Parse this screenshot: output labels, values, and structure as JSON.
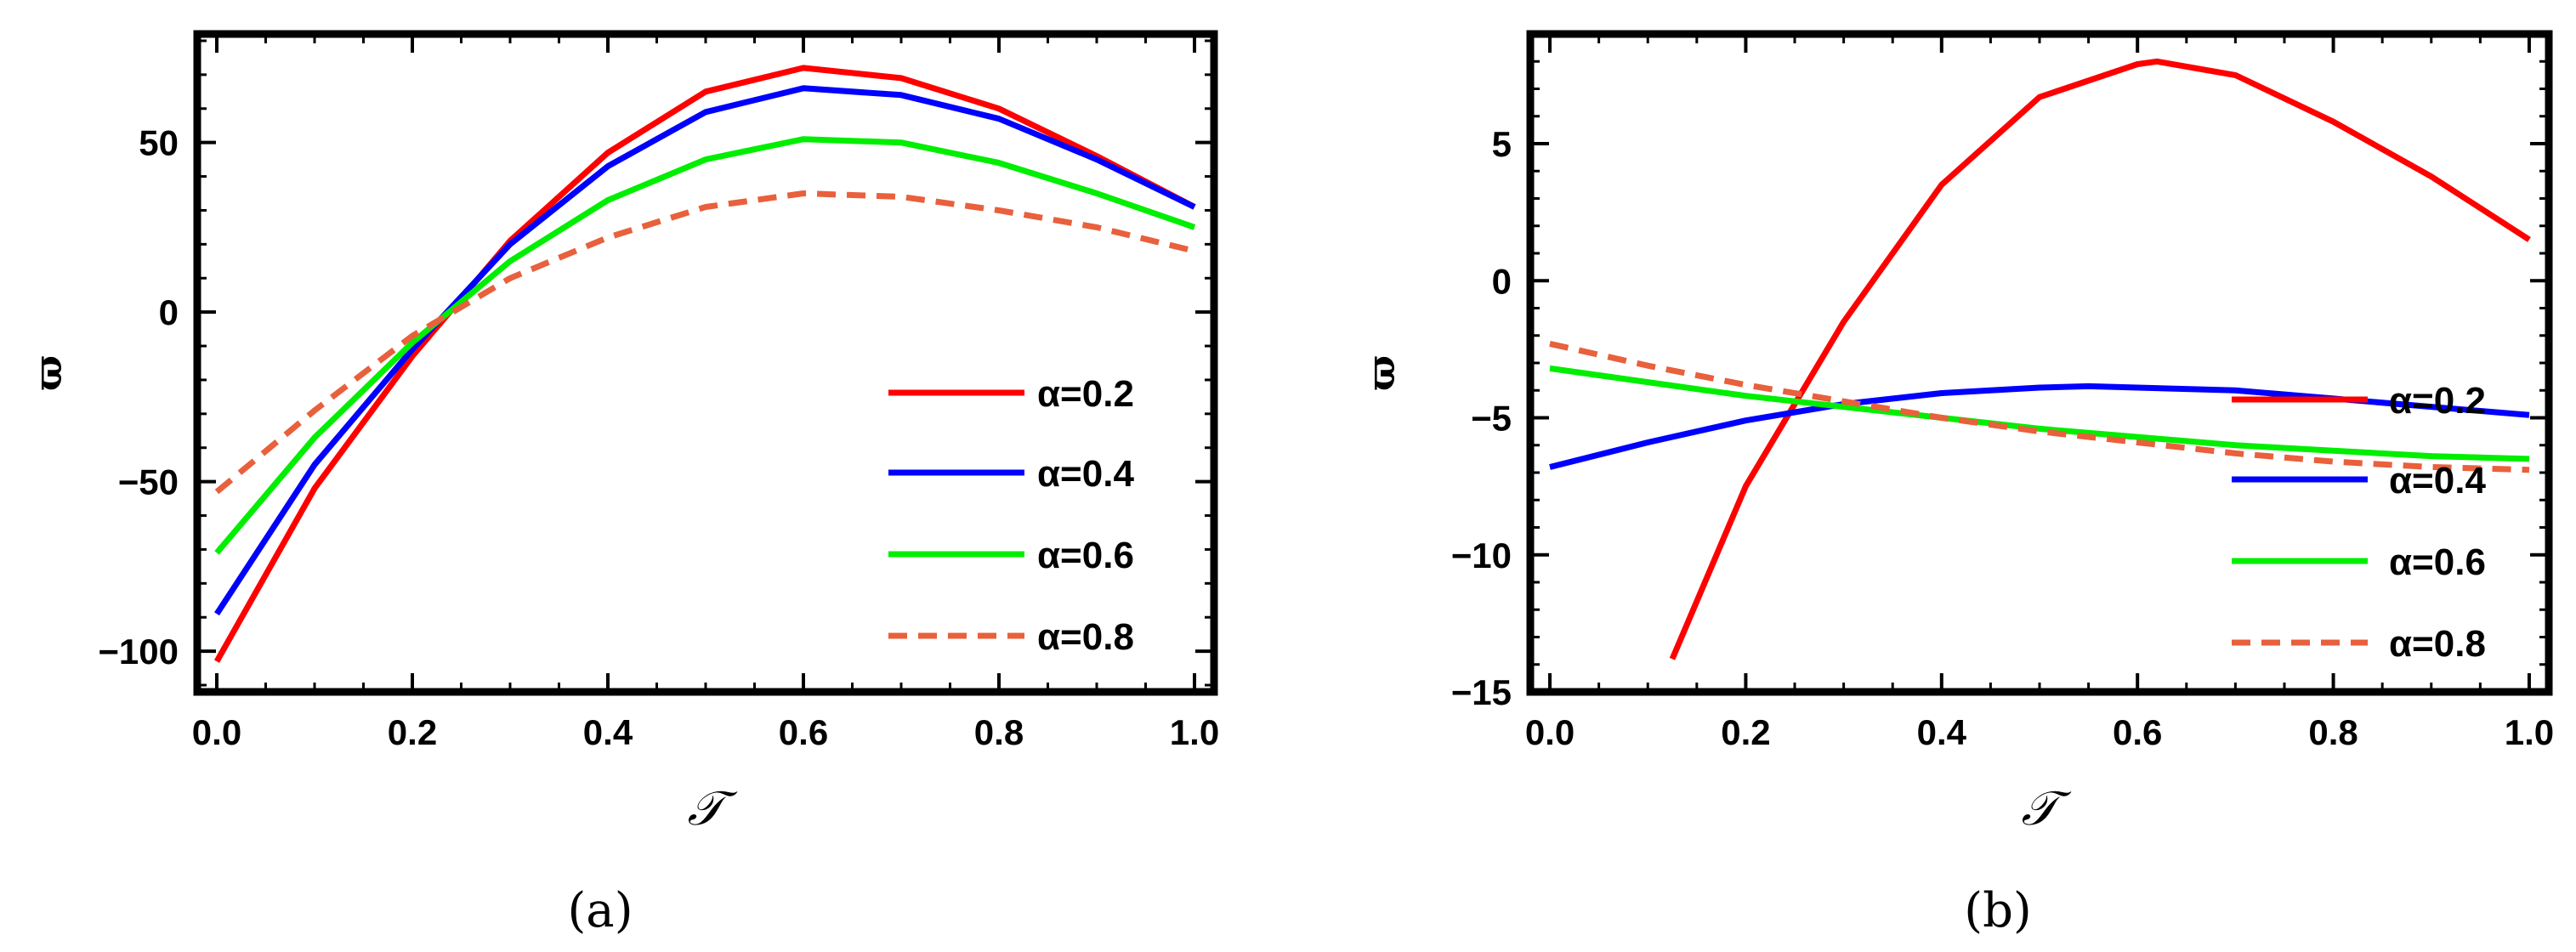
{
  "chart_data": [
    {
      "type": "line",
      "caption": "(a)",
      "xlabel": "𝒯",
      "ylabel": "ϖ",
      "xlim": [
        -0.02,
        1.02
      ],
      "ylim": [
        -112,
        82
      ],
      "xticks": [
        0.0,
        0.2,
        0.4,
        0.6,
        0.8,
        1.0
      ],
      "xtick_labels": [
        "0.0",
        "0.2",
        "0.4",
        "0.6",
        "0.8",
        "1.0"
      ],
      "yticks": [
        50,
        0,
        -50,
        -100
      ],
      "ytick_labels": [
        "50",
        "0",
        "−50",
        "−100"
      ],
      "legend_position": "right",
      "x": [
        0.0,
        0.1,
        0.2,
        0.3,
        0.4,
        0.5,
        0.6,
        0.7,
        0.8,
        0.9,
        1.0
      ],
      "series": [
        {
          "name": "α=0.2",
          "color": "#ff0000",
          "dash": false,
          "values": [
            -103,
            -52,
            -13,
            21,
            47,
            65,
            72,
            69,
            60,
            46,
            31
          ]
        },
        {
          "name": "α=0.4",
          "color": "#0000ff",
          "dash": false,
          "values": [
            -89,
            -45,
            -11,
            20,
            43,
            59,
            66,
            64,
            57,
            45,
            31
          ]
        },
        {
          "name": "α=0.6",
          "color": "#00ee00",
          "dash": false,
          "values": [
            -71,
            -37,
            -9,
            15,
            33,
            45,
            51,
            50,
            44,
            35,
            25
          ]
        },
        {
          "name": "α=0.8",
          "color": "#e8603c",
          "dash": true,
          "values": [
            -53,
            -29,
            -7,
            10,
            22,
            31,
            35,
            34,
            30,
            25,
            18
          ]
        }
      ]
    },
    {
      "type": "line",
      "caption": "(b)",
      "xlabel": "𝒯",
      "ylabel": "ϖ",
      "xlim": [
        -0.02,
        1.02
      ],
      "ylim": [
        -15,
        9
      ],
      "xticks": [
        0.0,
        0.2,
        0.4,
        0.6,
        0.8,
        1.0
      ],
      "xtick_labels": [
        "0.0",
        "0.2",
        "0.4",
        "0.6",
        "0.8",
        "1.0"
      ],
      "yticks": [
        5,
        0,
        -5,
        -10,
        -15
      ],
      "ytick_labels": [
        "5",
        "0",
        "−5",
        "−10",
        "−15"
      ],
      "legend_position": "right",
      "series": [
        {
          "name": "α=0.2",
          "color": "#ff0000",
          "dash": false,
          "x": [
            0.125,
            0.2,
            0.3,
            0.4,
            0.5,
            0.6,
            0.62,
            0.7,
            0.8,
            0.9,
            1.0
          ],
          "values": [
            -13.8,
            -7.5,
            -1.5,
            3.5,
            6.7,
            7.9,
            8.0,
            7.5,
            5.8,
            3.8,
            1.5
          ]
        },
        {
          "name": "α=0.4",
          "color": "#0000ff",
          "dash": false,
          "x": [
            0.0,
            0.1,
            0.2,
            0.3,
            0.4,
            0.5,
            0.55,
            0.6,
            0.7,
            0.8,
            0.9,
            1.0
          ],
          "values": [
            -6.8,
            -5.9,
            -5.1,
            -4.5,
            -4.1,
            -3.9,
            -3.85,
            -3.9,
            -4.0,
            -4.3,
            -4.6,
            -4.9
          ]
        },
        {
          "name": "α=0.6",
          "color": "#00ee00",
          "dash": false,
          "x": [
            0.0,
            0.1,
            0.2,
            0.3,
            0.4,
            0.5,
            0.6,
            0.7,
            0.8,
            0.9,
            1.0
          ],
          "values": [
            -3.2,
            -3.7,
            -4.2,
            -4.6,
            -5.0,
            -5.4,
            -5.7,
            -6.0,
            -6.2,
            -6.4,
            -6.5
          ]
        },
        {
          "name": "α=0.8",
          "color": "#e8603c",
          "dash": true,
          "x": [
            0.0,
            0.1,
            0.2,
            0.3,
            0.4,
            0.5,
            0.6,
            0.7,
            0.8,
            0.9,
            1.0
          ],
          "values": [
            -2.3,
            -3.1,
            -3.8,
            -4.4,
            -5.0,
            -5.5,
            -5.9,
            -6.3,
            -6.6,
            -6.8,
            -6.9
          ]
        }
      ]
    }
  ]
}
